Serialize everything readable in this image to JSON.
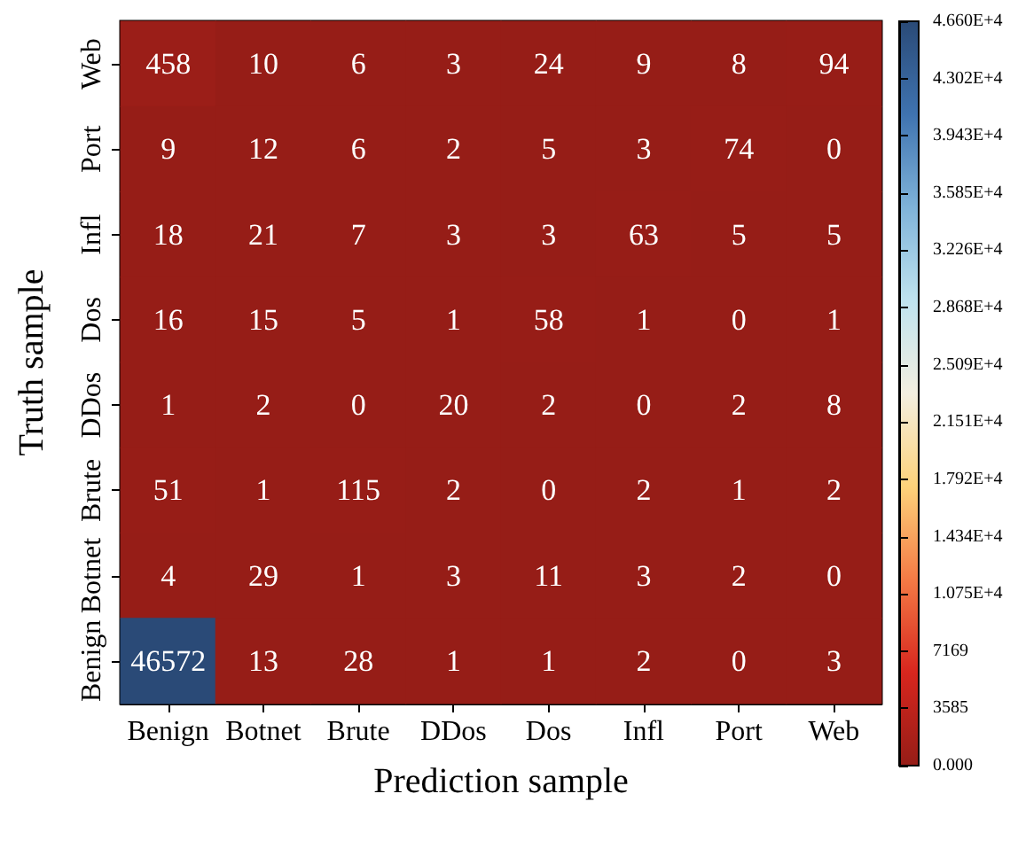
{
  "chart_data": {
    "type": "heatmap",
    "xlabel": "Prediction sample",
    "ylabel": "Truth sample",
    "categories": [
      "Benign",
      "Botnet",
      "Brute",
      "DDos",
      "Dos",
      "Infl",
      "Port",
      "Web"
    ],
    "y_categories": [
      "Web",
      "Port",
      "Infl",
      "Dos",
      "DDos",
      "Brute",
      "Botnet",
      "Benign"
    ],
    "cells": [
      [
        458,
        10,
        6,
        3,
        24,
        9,
        8,
        94
      ],
      [
        9,
        12,
        6,
        2,
        5,
        3,
        74,
        0
      ],
      [
        18,
        21,
        7,
        3,
        3,
        63,
        5,
        5
      ],
      [
        16,
        15,
        5,
        1,
        58,
        1,
        0,
        1
      ],
      [
        1,
        2,
        0,
        20,
        2,
        0,
        2,
        8
      ],
      [
        51,
        1,
        115,
        2,
        0,
        2,
        1,
        2
      ],
      [
        4,
        29,
        1,
        3,
        11,
        3,
        2,
        0
      ],
      [
        46572,
        13,
        28,
        1,
        1,
        2,
        0,
        3
      ]
    ],
    "clim": [
      0,
      46600
    ],
    "cticks": [
      {
        "value": 0,
        "label": "0.000"
      },
      3585,
      7169,
      {
        "value": 10750,
        "label": "1.075E+4"
      },
      {
        "value": 14340,
        "label": "1.434E+4"
      },
      {
        "value": 17920,
        "label": "1.792E+4"
      },
      {
        "value": 21510,
        "label": "2.151E+4"
      },
      {
        "value": 25090,
        "label": "2.509E+4"
      },
      {
        "value": 28680,
        "label": "2.868E+4"
      },
      {
        "value": 32260,
        "label": "3.226E+4"
      },
      {
        "value": 35850,
        "label": "3.585E+4"
      },
      {
        "value": 39430,
        "label": "3.943E+4"
      },
      {
        "value": 43020,
        "label": "4.302E+4"
      },
      {
        "value": 46600,
        "label": "4.660E+4"
      }
    ],
    "data_labels": true
  }
}
